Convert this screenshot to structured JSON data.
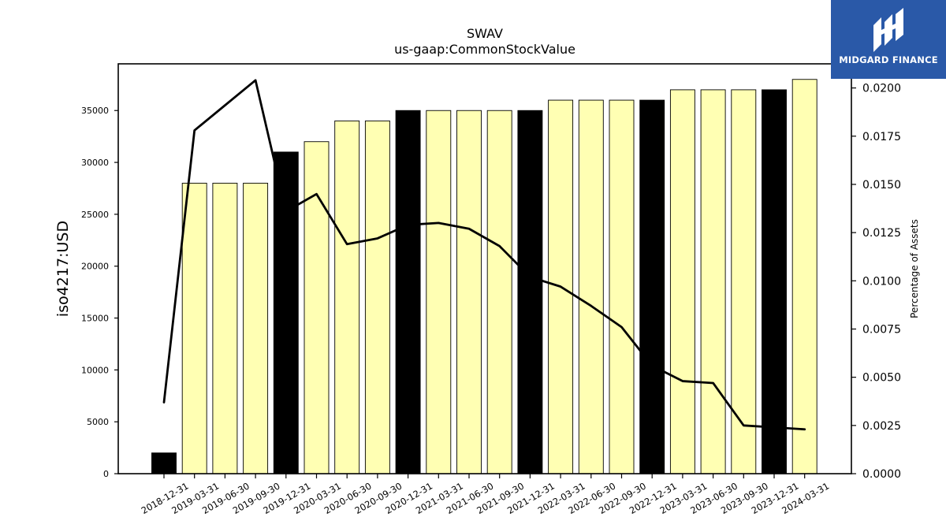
{
  "brand": {
    "name": "MIDGARD FINANCE",
    "background": "#2a59a8",
    "icon": "midgard-logo-icon"
  },
  "colors": {
    "bar_fill": "#ffffb3",
    "bar_highlight": "#000000",
    "line": "#000000",
    "axis": "#000000"
  },
  "chart_data": {
    "type": "bar",
    "title": "SWAV",
    "subtitle": "us-gaap:CommonStockValue",
    "ylabel": "iso4217:USD",
    "y2label": "Percentage of Assets",
    "categories": [
      "2018-12-31",
      "2019-03-31",
      "2019-06-30",
      "2019-09-30",
      "2019-12-31",
      "2020-03-31",
      "2020-06-30",
      "2020-09-30",
      "2020-12-31",
      "2021-03-31",
      "2021-06-30",
      "2021-09-30",
      "2021-12-31",
      "2022-03-31",
      "2022-06-30",
      "2022-09-30",
      "2022-12-31",
      "2023-03-31",
      "2023-06-30",
      "2023-09-30",
      "2023-12-31",
      "2024-03-31"
    ],
    "values": [
      2000,
      28000,
      28000,
      28000,
      31000,
      32000,
      34000,
      34000,
      35000,
      35000,
      35000,
      35000,
      35000,
      36000,
      36000,
      36000,
      36000,
      37000,
      37000,
      37000,
      37000,
      38000
    ],
    "highlight": [
      true,
      false,
      false,
      false,
      true,
      false,
      false,
      false,
      true,
      false,
      false,
      false,
      true,
      false,
      false,
      false,
      true,
      false,
      false,
      false,
      true,
      false
    ],
    "series": [
      {
        "values": [
          0.0037,
          0.0178,
          0.0191,
          0.0204,
          0.0136,
          0.0145,
          0.0119,
          0.0122,
          0.0129,
          0.013,
          0.0127,
          0.0118,
          0.0102,
          0.0097,
          0.0087,
          0.0076,
          0.0056,
          0.0048,
          0.0047,
          0.0025,
          0.0024,
          0.0023
        ]
      }
    ],
    "ylim": [
      0,
      39500
    ],
    "yticks": [
      0,
      5000,
      10000,
      15000,
      20000,
      25000,
      30000,
      35000
    ],
    "ytick_labels": [
      "0",
      "5000",
      "10000",
      "15000",
      "20000",
      "25000",
      "30000",
      "35000"
    ],
    "y2lim": [
      0,
      0.02125
    ],
    "y2ticks": [
      0,
      0.0025,
      0.005,
      0.0075,
      0.01,
      0.0125,
      0.015,
      0.0175,
      0.02
    ],
    "y2tick_labels": [
      "0.0000",
      "0.0025",
      "0.0050",
      "0.0075",
      "0.0100",
      "0.0125",
      "0.0150",
      "0.0175",
      "0.0200"
    ],
    "grid": false,
    "legend": "none"
  }
}
